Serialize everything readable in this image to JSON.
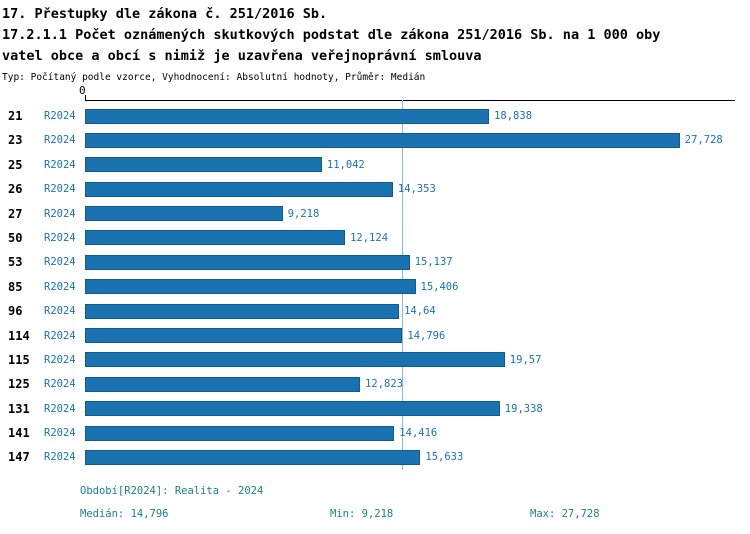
{
  "title": {
    "line1": "17. Přestupky dle zákona č. 251/2016 Sb.",
    "line2": "17.2.1.1 Počet oznámených skutkových podstat dle zákona 251/2016 Sb. na 1 000 oby",
    "line3": "vatel obce a obcí s nimiž je uzavřena veřejnoprávní smlouva",
    "meta": "Typ: Počítaný podle vzorce, Vyhodnocení: Absolutní hodnoty, Průměr: Medián"
  },
  "chart_data": {
    "type": "bar",
    "orientation": "horizontal",
    "title": "17.2.1.1 Počet oznámených skutkových podstat dle zákona 251/2016 Sb. na 1 000 obyvatel obce a obcí s nimiž je uzavřena veřejnoprávní smlouva",
    "series_label": "R2024",
    "axis_origin_label": "0",
    "xlim": [
      0,
      30.3
    ],
    "grid": false,
    "legend_position": "none",
    "categories": [
      "21",
      "23",
      "25",
      "26",
      "27",
      "50",
      "53",
      "85",
      "96",
      "114",
      "115",
      "125",
      "131",
      "141",
      "147"
    ],
    "values": [
      18.838,
      27.728,
      11.042,
      14.353,
      9.218,
      12.124,
      15.137,
      15.406,
      14.64,
      14.796,
      19.57,
      12.823,
      19.338,
      14.416,
      15.633
    ],
    "value_labels": [
      "18,838",
      "27,728",
      "11,042",
      "14,353",
      "9,218",
      "12,124",
      "15,137",
      "15,406",
      "14,64",
      "14,796",
      "19,57",
      "12,823",
      "19,338",
      "14,416",
      "15,633"
    ],
    "median_value": 14.796,
    "colors": {
      "bar": "#1b72b1",
      "bar_border": "#125a8c",
      "value_text": "#1b72b1",
      "series_text": "#1b72b1",
      "category_text": "#000000",
      "median_line": "#8ab8d8",
      "footer_text": "#1d7f8c"
    }
  },
  "footer": {
    "period": "Období[R2024]: Realita - 2024",
    "median": "Medián: 14,796",
    "min": "Min: 9,218",
    "max": "Max: 27,728"
  }
}
